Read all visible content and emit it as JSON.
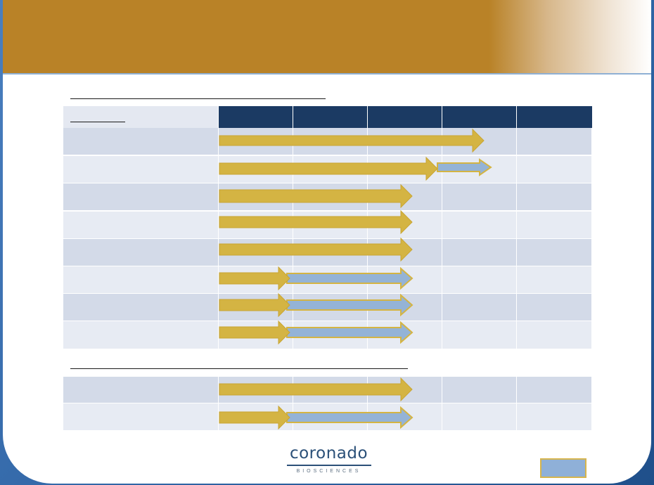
{
  "slide": {
    "header_color": "#b98227",
    "accent_blue": "#2f5f9b"
  },
  "pipeline": {
    "phase_columns": 5,
    "rows_section1": 8,
    "rows_section2": 2
  },
  "logo": {
    "wordmark": "coronado",
    "subtitle": "BIOSCIENCES"
  },
  "colors": {
    "arrow_gold": "#d4b443",
    "arrow_blue": "#94b3d6",
    "table_dark": "#d3dae8",
    "table_light": "#e7ebf3",
    "column_header": "#1b3a63"
  }
}
